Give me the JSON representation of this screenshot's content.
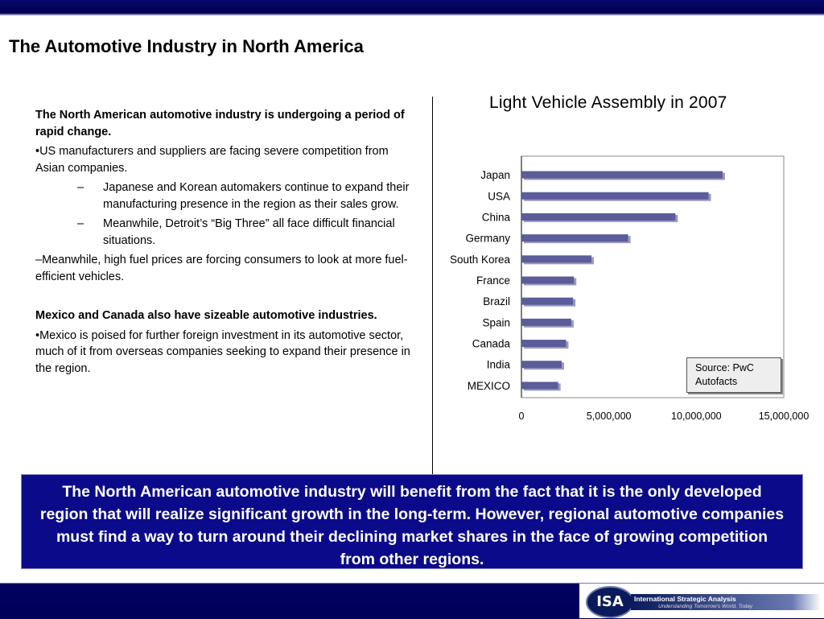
{
  "page": {
    "title": "The Automotive Industry in North America"
  },
  "text": {
    "heading1": "The North American automotive industry is undergoing a period of rapid change.",
    "bullet1": "•US manufacturers and suppliers are facing severe competition from Asian companies.",
    "sub1_dash": "–",
    "sub1": "Japanese and Korean automakers continue to expand their manufacturing presence in the region as their sales grow.",
    "sub2_dash": "–",
    "sub2": "Meanwhile, Detroit’s “Big Three” all face difficult financial situations.",
    "line3": "–Meanwhile, high fuel prices are forcing consumers to look at more fuel-efficient vehicles.",
    "heading2": "Mexico and Canada also have sizeable automotive industries.",
    "bullet2": "•Mexico is poised for further foreign investment in its automotive sector, much of it from overseas companies seeking to expand their presence in the region."
  },
  "chart_data": {
    "type": "bar",
    "orientation": "horizontal",
    "title": "Light Vehicle Assembly in 2007",
    "categories": [
      "Japan",
      "USA",
      "China",
      "Germany",
      "South Korea",
      "France",
      "Brazil",
      "Spain",
      "Canada",
      "India",
      "MEXICO"
    ],
    "values": [
      11500000,
      10700000,
      8800000,
      6100000,
      4000000,
      3000000,
      2950000,
      2850000,
      2550000,
      2300000,
      2100000
    ],
    "xlim": [
      0,
      15000000
    ],
    "xticks": [
      "0",
      "5,000,000",
      "10,000,000",
      "15,000,000"
    ],
    "xlabel": "",
    "ylabel": "",
    "bar_color": "#5c5c9a",
    "grid": false,
    "source_note": "Source: PwC Autofacts"
  },
  "callout": {
    "text": "The North American automotive industry will benefit from the fact that it is the only developed region that will realize significant growth in the long-term.  However, regional automotive companies must find a way to turn around their declining market shares in the face of growing competition from other regions."
  },
  "logo": {
    "mark": "ISA",
    "name": "International Strategic Analysis",
    "tagline": "Understanding Tomorrow's World, Today"
  },
  "colors": {
    "navy": "#0a0a8a",
    "bar": "#5c5c9a"
  }
}
